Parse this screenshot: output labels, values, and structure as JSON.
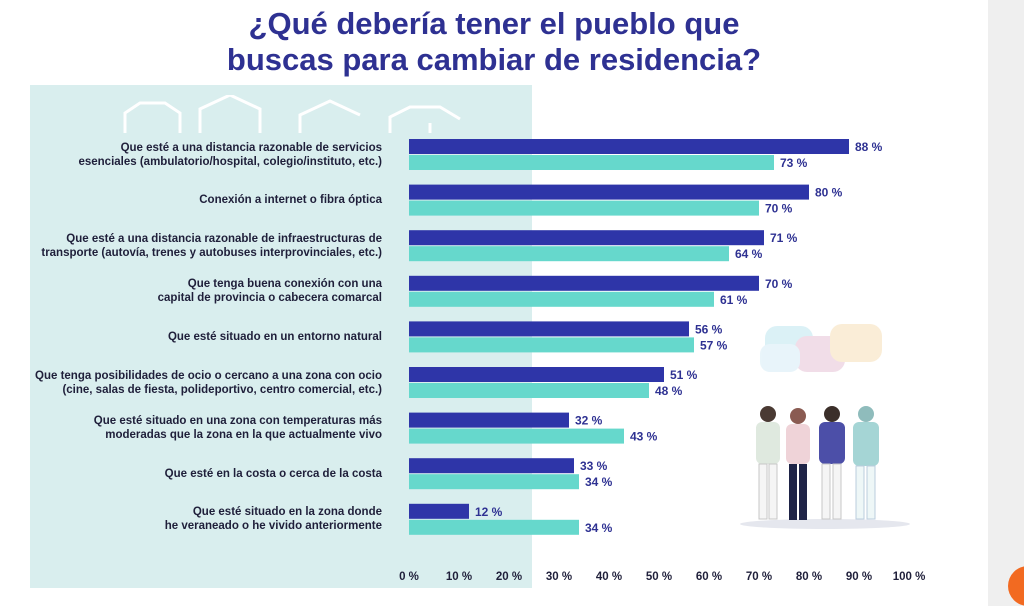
{
  "title_lines": [
    "¿Qué debería tener el pueblo que",
    "buscas para cambiar de residencia?"
  ],
  "colors": {
    "series_dark": "#2e35a8",
    "series_light": "#66d8cc",
    "title": "#2e3192",
    "background_block": "#d9eeee"
  },
  "chart_data": {
    "type": "bar",
    "orientation": "horizontal",
    "categories": [
      "Que esté a una distancia razonable de servicios esenciales (ambulatorio/hospital, colegio/instituto, etc.)",
      "Conexión a internet o fibra óptica",
      "Que esté a una distancia razonable de infraestructuras de transporte (autovía, trenes y autobuses interprovinciales, etc.)",
      "Que tenga buena conexión con una capital de provincia o cabecera comarcal",
      "Que esté situado en un entorno natural",
      "Que tenga posibilidades de ocio o cercano a una zona con ocio (cine, salas de fiesta, polideportivo, centro comercial, etc.)",
      "Que esté situado en una zona con temperaturas más moderadas que la zona en la que actualmente vivo",
      "Que esté en la costa o cerca de la costa",
      "Que esté situado en la zona donde he veraneado o he vivido anteriormente"
    ],
    "label_lines": [
      [
        "Que esté a una distancia razonable de servicios",
        "esenciales (ambulatorio/hospital, colegio/instituto, etc.)"
      ],
      [
        "Conexión a internet o fibra óptica"
      ],
      [
        "Que esté a una distancia razonable de infraestructuras de",
        "transporte (autovía, trenes y autobuses interprovinciales, etc.)"
      ],
      [
        "Que tenga buena conexión con una",
        "capital de provincia o cabecera comarcal"
      ],
      [
        "Que esté situado en un entorno natural"
      ],
      [
        "Que tenga posibilidades de ocio o cercano a una zona con ocio",
        "(cine, salas de fiesta, polideportivo, centro comercial, etc.)"
      ],
      [
        "Que esté situado en una zona con temperaturas más",
        "moderadas que la zona en la que actualmente vivo"
      ],
      [
        "Que esté en la costa o cerca de la costa"
      ],
      [
        "Que esté situado en la zona donde",
        "he veraneado o he vivido anteriormente"
      ]
    ],
    "series": [
      {
        "values": [
          88,
          80,
          71,
          70,
          56,
          51,
          32,
          33,
          12
        ],
        "color": "#2e35a8"
      },
      {
        "values": [
          73,
          70,
          64,
          61,
          57,
          48,
          43,
          34,
          34
        ],
        "color": "#66d8cc"
      }
    ],
    "value_suffix": " %",
    "x_ticks": [
      "0 %",
      "10 %",
      "20 %",
      "30 %",
      "40 %",
      "50 %",
      "60 %",
      "70 %",
      "80 %",
      "90 %",
      "100 %"
    ],
    "xlim": [
      0,
      100
    ],
    "grid": false,
    "legend": "none"
  }
}
